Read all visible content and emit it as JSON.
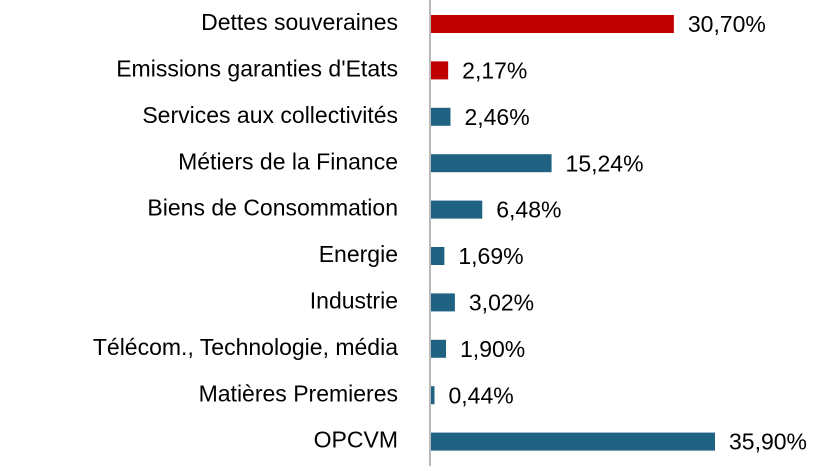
{
  "chart_data": {
    "type": "bar",
    "orientation": "horizontal",
    "categories": [
      "Dettes souveraines",
      "Emissions garanties d'Etats",
      "Services aux collectivités",
      "Métiers de la Finance",
      "Biens de Consommation",
      "Energie",
      "Industrie",
      "Télécom., Technologie, média",
      "Matières Premieres",
      "OPCVM"
    ],
    "values": [
      30.7,
      2.17,
      2.46,
      15.24,
      6.48,
      1.69,
      3.02,
      1.9,
      0.44,
      35.9
    ],
    "value_labels": [
      "30,70%",
      "2,17%",
      "2,46%",
      "15,24%",
      "6,48%",
      "1,69%",
      "3,02%",
      "1,90%",
      "0,44%",
      "35,90%"
    ],
    "colors": [
      "#c00000",
      "#c00000",
      "#1f6282",
      "#1f6282",
      "#1f6282",
      "#1f6282",
      "#1f6282",
      "#1f6282",
      "#1f6282",
      "#1f6282"
    ]
  }
}
